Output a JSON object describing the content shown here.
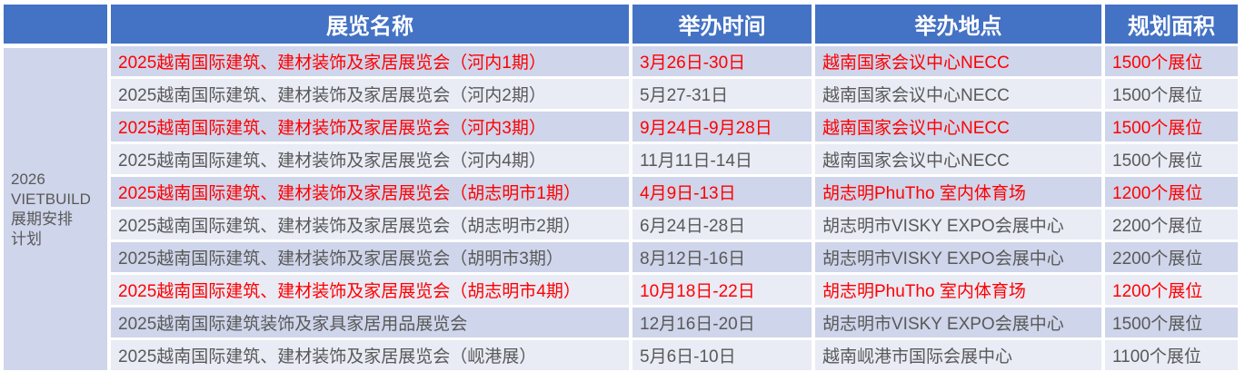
{
  "header": {
    "columns": [
      "",
      "展览名称",
      "举办时间",
      "举办地点",
      "规划面积"
    ]
  },
  "side_label": {
    "line1": "2026",
    "line2": "VIETBUILD",
    "line3": "展期安排",
    "line4": "计划"
  },
  "colors": {
    "header_bg": "#4472c4",
    "row_dark": "#cfd5ea",
    "row_light": "#e9ebf5",
    "highlight_text": "#ff0000",
    "normal_text": "#595959"
  },
  "rows": [
    {
      "name": "2025越南国际建筑、建材装饰及家居展览会（河内1期）",
      "time": "3月26日-30日",
      "place": "越南国家会议中心NECC",
      "area": "1500个展位",
      "highlight": true
    },
    {
      "name": "2025越南国际建筑、建材装饰及家居展览会（河内2期）",
      "time": "5月27-31日",
      "place": "越南国家会议中心NECC",
      "area": "1500个展位",
      "highlight": false
    },
    {
      "name": "2025越南国际建筑、建材装饰及家居展览会（河内3期）",
      "time": "9月24日-9月28日",
      "place": "越南国家会议中心NECC",
      "area": "1500个展位",
      "highlight": true
    },
    {
      "name": "2025越南国际建筑、建材装饰及家居展览会（河内4期）",
      "time": "11月11日-14日",
      "place": "越南国家会议中心NECC",
      "area": "1500个展位",
      "highlight": false
    },
    {
      "name": "2025越南国际建筑、建材装饰及家居展览会（胡志明市1期）",
      "time": "4月9日-13日",
      "place": "胡志明PhuTho 室内体育场",
      "area": "1200个展位",
      "highlight": true
    },
    {
      "name": "2025越南国际建筑、建材装饰及家居展览会（胡志明市2期）",
      "time": "6月24日-28日",
      "place": "胡志明市VISKY EXPO会展中心",
      "area": "2200个展位",
      "highlight": false
    },
    {
      "name": "2025越南国际建筑、建材装饰及家居展览会（胡明市3期）",
      "time": "8月12日-16日",
      "place": "胡志明市VISKY EXPO会展中心",
      "area": "2200个展位",
      "highlight": false
    },
    {
      "name": "2025越南国际建筑、建材装饰及家居展览会（胡志明市4期）",
      "time": "10月18日-22日",
      "place": "胡志明PhuTho 室内体育场",
      "area": "1200个展位",
      "highlight": true
    },
    {
      "name": "2025越南国际建筑装饰及家具家居用品展览会",
      "time": "12月16日-20日",
      "place": "胡志明市VISKY EXPO会展中心",
      "area": "1500个展位",
      "highlight": false
    },
    {
      "name": "2025越南国际建筑、建材装饰及家居展览会（岘港展）",
      "time": "5月6日-10日",
      "place": "越南岘港市国际会展中心",
      "area": "1100个展位",
      "highlight": false
    }
  ]
}
